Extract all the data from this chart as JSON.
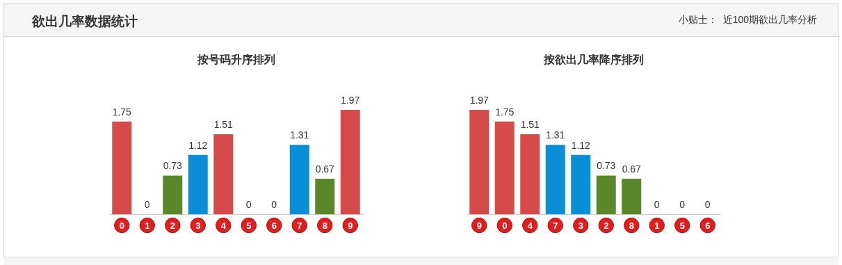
{
  "chart_data": [
    {
      "type": "other",
      "title": "欲出几率数据统计",
      "annotations": [
        "小贴士：  近100期欲出几率分析"
      ]
    },
    {
      "type": "bar",
      "title": "按号码升序排列",
      "categories": [
        "0",
        "1",
        "2",
        "3",
        "4",
        "5",
        "6",
        "7",
        "8",
        "9"
      ],
      "values": [
        1.75,
        0,
        0.73,
        1.12,
        1.51,
        0,
        0,
        1.31,
        0.67,
        1.97
      ],
      "colors": [
        "#d64a4a",
        "#5a8729",
        "#5a8729",
        "#0a8fd6",
        "#d64a4a",
        "#5a8729",
        "#5a8729",
        "#0a8fd6",
        "#5a8729",
        "#d64a4a"
      ],
      "data_labels": true
    },
    {
      "type": "bar",
      "title": "按欲出几率降序排列",
      "categories": [
        "9",
        "0",
        "4",
        "7",
        "3",
        "2",
        "8",
        "1",
        "5",
        "6"
      ],
      "values": [
        1.97,
        1.75,
        1.51,
        1.31,
        1.12,
        0.73,
        0.67,
        0,
        0,
        0
      ],
      "colors": [
        "#d64a4a",
        "#d64a4a",
        "#d64a4a",
        "#0a8fd6",
        "#0a8fd6",
        "#5a8729",
        "#5a8729",
        "#5a8729",
        "#5a8729",
        "#5a8729"
      ],
      "data_labels": true
    }
  ]
}
